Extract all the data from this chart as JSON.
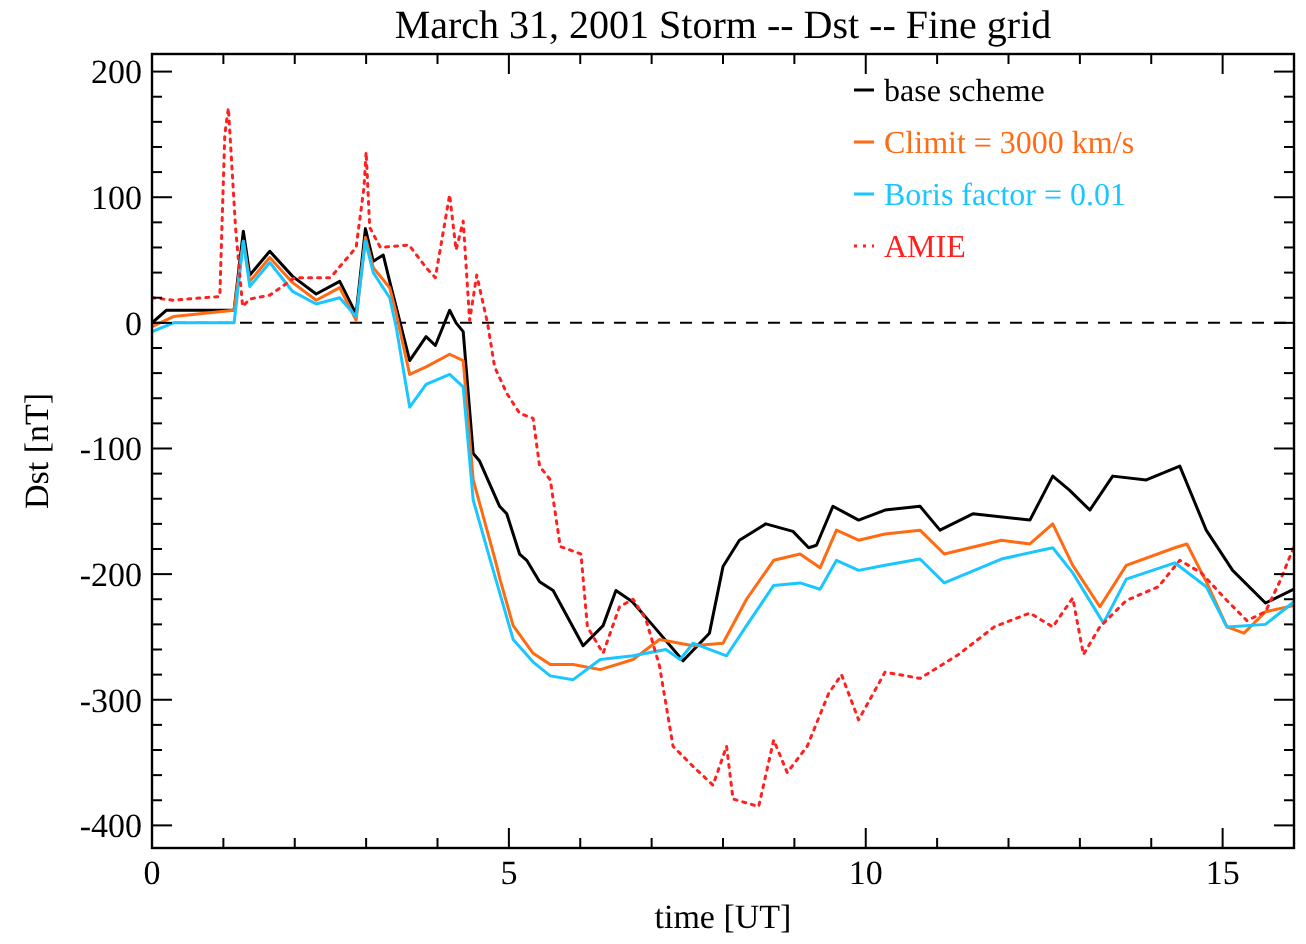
{
  "chart_data": {
    "type": "line",
    "title": "March 31, 2001 Storm -- Dst -- Fine grid",
    "xlabel": "time [UT]",
    "ylabel": "Dst [nT]",
    "xlim": [
      0,
      16
    ],
    "ylim": [
      -418,
      214
    ],
    "xticks": [
      0,
      {
        "value": 1,
        "label": null
      },
      {
        "value": 2,
        "label": null
      },
      {
        "value": 3,
        "label": null
      },
      {
        "value": 4,
        "label": null
      },
      5,
      {
        "value": 6,
        "label": null
      },
      {
        "value": 7,
        "label": null
      },
      {
        "value": 8,
        "label": null
      },
      {
        "value": 9,
        "label": null
      },
      10,
      {
        "value": 11,
        "label": null
      },
      {
        "value": 12,
        "label": null
      },
      {
        "value": 13,
        "label": null
      },
      {
        "value": 14,
        "label": null
      },
      15,
      {
        "value": 16,
        "label": null
      }
    ],
    "yticks": [
      -400,
      {
        "value": -380,
        "label": null
      },
      {
        "value": -360,
        "label": null
      },
      {
        "value": -340,
        "label": null
      },
      {
        "value": -320,
        "label": null
      },
      -300,
      {
        "value": -280,
        "label": null
      },
      {
        "value": -260,
        "label": null
      },
      {
        "value": -240,
        "label": null
      },
      {
        "value": -220,
        "label": null
      },
      -200,
      {
        "value": -180,
        "label": null
      },
      {
        "value": -160,
        "label": null
      },
      {
        "value": -140,
        "label": null
      },
      {
        "value": -120,
        "label": null
      },
      -100,
      {
        "value": -80,
        "label": null
      },
      {
        "value": -60,
        "label": null
      },
      {
        "value": -40,
        "label": null
      },
      {
        "value": -20,
        "label": null
      },
      0,
      {
        "value": 20,
        "label": null
      },
      {
        "value": 40,
        "label": null
      },
      {
        "value": 60,
        "label": null
      },
      {
        "value": 80,
        "label": null
      },
      100,
      {
        "value": 120,
        "label": null
      },
      {
        "value": 140,
        "label": null
      },
      {
        "value": 160,
        "label": null
      },
      {
        "value": 180,
        "label": null
      },
      200
    ],
    "grid": false,
    "legend": "top right",
    "ref_lines": [
      {
        "axis": "y",
        "value": 0,
        "line_style": "dashed",
        "color": "#000000"
      }
    ],
    "series": [
      {
        "name": "base scheme",
        "color": "#000000",
        "line_style": "solid",
        "x": [
          0,
          0.2,
          1.15,
          1.28,
          1.37,
          1.65,
          1.97,
          2.3,
          2.63,
          2.86,
          2.99,
          3.1,
          3.24,
          3.33,
          3.42,
          3.61,
          3.84,
          3.97,
          4.17,
          4.26,
          4.36,
          4.5,
          4.59,
          4.87,
          4.97,
          5.15,
          5.25,
          5.43,
          5.62,
          6.04,
          6.32,
          6.5,
          6.73,
          7.02,
          7.44,
          7.81,
          8.0,
          8.23,
          8.6,
          8.98,
          9.2,
          9.31,
          9.54,
          9.9,
          10.27,
          10.76,
          11.04,
          11.5,
          12.3,
          12.62,
          12.85,
          13.14,
          13.46,
          13.93,
          14.4,
          14.77,
          15.14,
          15.6,
          16
        ],
        "values": [
          0,
          10,
          10,
          73,
          38,
          57,
          37,
          23,
          33,
          7,
          75,
          49,
          54,
          33,
          13,
          -30,
          -11,
          -18,
          10,
          0,
          -7,
          -104,
          -110,
          -146,
          -152,
          -184,
          -189,
          -206,
          -213,
          -257,
          -241,
          -213,
          -222,
          -241,
          -269,
          -247,
          -194,
          -173,
          -160,
          -166,
          -179,
          -177,
          -146,
          -157,
          -149,
          -146,
          -165,
          -152,
          -157,
          -122,
          -133,
          -149,
          -122,
          -125,
          -114,
          -165,
          -197,
          -223,
          -212
        ]
      },
      {
        "name": "Climit = 3000 km/s",
        "color": "#ff6a13",
        "line_style": "solid",
        "x": [
          0,
          0.3,
          1.15,
          1.28,
          1.37,
          1.65,
          1.97,
          2.3,
          2.63,
          2.86,
          2.99,
          3.1,
          3.33,
          3.42,
          3.61,
          3.84,
          4.17,
          4.36,
          4.5,
          4.81,
          4.88,
          5.06,
          5.34,
          5.58,
          5.9,
          6.28,
          6.74,
          7.11,
          7.58,
          8.0,
          8.33,
          8.71,
          9.08,
          9.36,
          9.59,
          9.9,
          10.27,
          10.76,
          11.1,
          11.9,
          12.3,
          12.62,
          12.9,
          13.28,
          13.65,
          14.33,
          14.5,
          14.77,
          15.06,
          15.3,
          15.6,
          16
        ],
        "values": [
          -3,
          5,
          10,
          65,
          33,
          52,
          32,
          18,
          28,
          2,
          68,
          44,
          28,
          8,
          -41,
          -35,
          -25,
          -30,
          -125,
          -189,
          -205,
          -241,
          -263,
          -272,
          -272,
          -276,
          -268,
          -252,
          -257,
          -255,
          -220,
          -189,
          -184,
          -195,
          -165,
          -173,
          -168,
          -165,
          -184,
          -173,
          -176,
          -160,
          -193,
          -226,
          -193,
          -179,
          -176,
          -206,
          -242,
          -247,
          -230,
          -225
        ]
      },
      {
        "name": "Boris factor = 0.01",
        "color": "#1ac6ff",
        "line_style": "solid",
        "x": [
          0,
          0.3,
          1.15,
          1.28,
          1.37,
          1.65,
          1.97,
          2.3,
          2.63,
          2.86,
          2.99,
          3.1,
          3.33,
          3.42,
          3.61,
          3.84,
          4.17,
          4.36,
          4.5,
          4.74,
          5.06,
          5.34,
          5.58,
          5.9,
          6.28,
          6.74,
          7.2,
          7.4,
          7.58,
          8.05,
          8.33,
          8.71,
          9.08,
          9.36,
          9.59,
          9.9,
          10.27,
          10.76,
          11.1,
          11.9,
          12.62,
          12.9,
          13.33,
          13.65,
          14.33,
          14.77,
          15.06,
          15.6,
          16
        ],
        "values": [
          -7,
          0,
          0,
          65,
          29,
          48,
          25,
          15,
          20,
          5,
          65,
          40,
          20,
          -3,
          -67,
          -49,
          -41,
          -51,
          -141,
          -189,
          -252,
          -270,
          -281,
          -284,
          -268,
          -265,
          -260,
          -268,
          -255,
          -265,
          -241,
          -209,
          -207,
          -212,
          -189,
          -197,
          -193,
          -188,
          -207,
          -188,
          -179,
          -199,
          -239,
          -204,
          -191,
          -210,
          -242,
          -240,
          -222
        ]
      },
      {
        "name": "AMIE",
        "color": "#ff2020",
        "line_style": "dotted",
        "x": [
          0,
          0.3,
          0.95,
          1.02,
          1.07,
          1.12,
          1.17,
          1.27,
          1.37,
          1.65,
          2.0,
          2.5,
          2.86,
          2.97,
          3.0,
          3.05,
          3.2,
          3.6,
          3.84,
          3.97,
          4.17,
          4.26,
          4.36,
          4.45,
          4.55,
          4.7,
          4.8,
          4.97,
          5.15,
          5.34,
          5.43,
          5.58,
          5.72,
          6.01,
          6.1,
          6.32,
          6.55,
          6.74,
          6.92,
          7.11,
          7.3,
          7.58,
          7.86,
          8.05,
          8.14,
          8.5,
          8.71,
          8.9,
          9.18,
          9.48,
          9.66,
          9.9,
          10.27,
          10.76,
          11.3,
          11.8,
          12.3,
          12.62,
          12.9,
          13.05,
          13.28,
          13.65,
          14.1,
          14.4,
          14.7,
          15.06,
          15.34,
          15.6,
          15.8,
          16
        ],
        "values": [
          20,
          18,
          21,
          150,
          171,
          124,
          76,
          13,
          19,
          22,
          36,
          36,
          60,
          108,
          136,
          76,
          60,
          62,
          44,
          36,
          102,
          58,
          81,
          2,
          38,
          0,
          -35,
          -56,
          -72,
          -76,
          -114,
          -125,
          -178,
          -184,
          -242,
          -263,
          -226,
          -220,
          -236,
          -273,
          -337,
          -353,
          -368,
          -337,
          -379,
          -385,
          -332,
          -358,
          -337,
          -295,
          -280,
          -316,
          -278,
          -283,
          -264,
          -242,
          -231,
          -242,
          -219,
          -264,
          -242,
          -221,
          -210,
          -189,
          -199,
          -221,
          -237,
          -230,
          -206,
          -178
        ]
      }
    ]
  }
}
